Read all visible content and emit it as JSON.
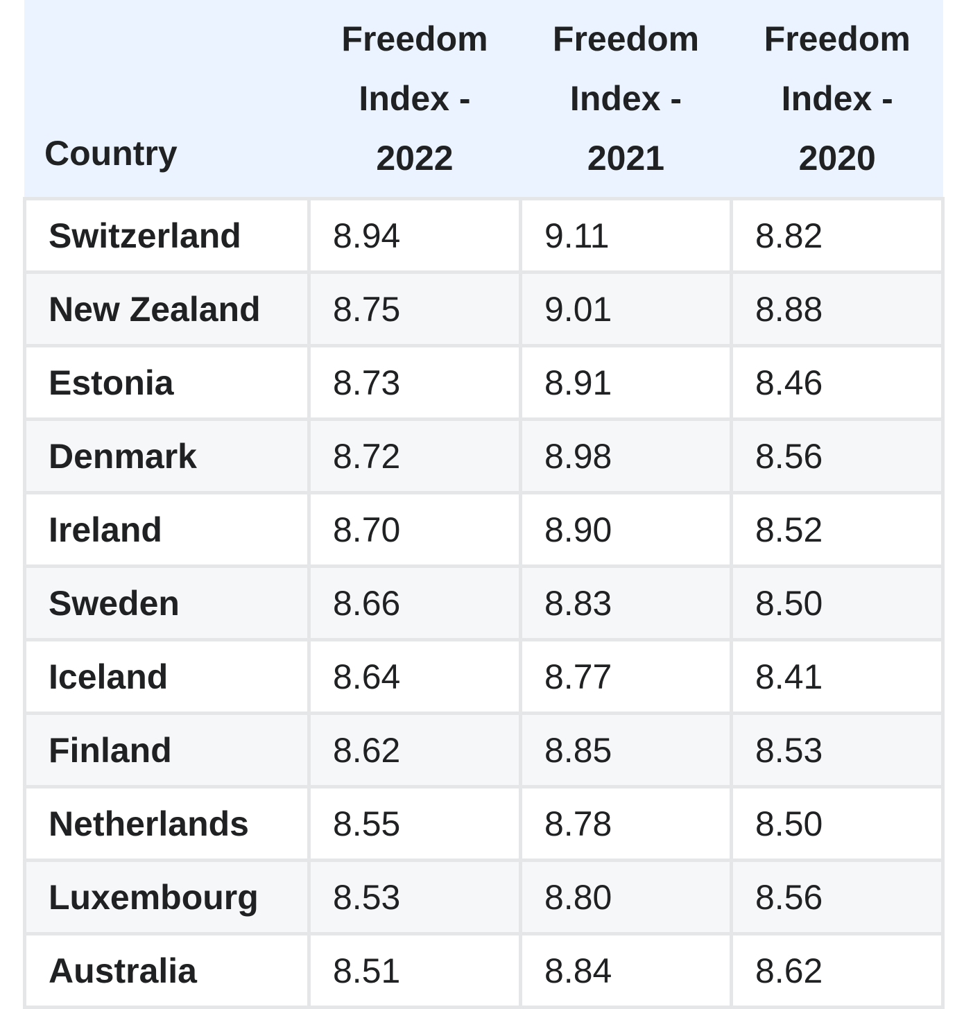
{
  "table": {
    "header": [
      "Country",
      "Freedom Index - 2022",
      "Freedom Index - 2021",
      "Freedom Index - 2020"
    ],
    "rows": [
      [
        "Switzerland",
        "8.94",
        "9.11",
        "8.82"
      ],
      [
        "New Zealand",
        "8.75",
        "9.01",
        "8.88"
      ],
      [
        "Estonia",
        "8.73",
        "8.91",
        "8.46"
      ],
      [
        "Denmark",
        "8.72",
        "8.98",
        "8.56"
      ],
      [
        "Ireland",
        "8.70",
        "8.90",
        "8.52"
      ],
      [
        "Sweden",
        "8.66",
        "8.83",
        "8.50"
      ],
      [
        "Iceland",
        "8.64",
        "8.77",
        "8.41"
      ],
      [
        "Finland",
        "8.62",
        "8.85",
        "8.53"
      ],
      [
        "Netherlands",
        "8.55",
        "8.78",
        "8.50"
      ],
      [
        "Luxembourg",
        "8.53",
        "8.80",
        "8.56"
      ],
      [
        "Australia",
        "8.51",
        "8.84",
        "8.62"
      ]
    ]
  }
}
